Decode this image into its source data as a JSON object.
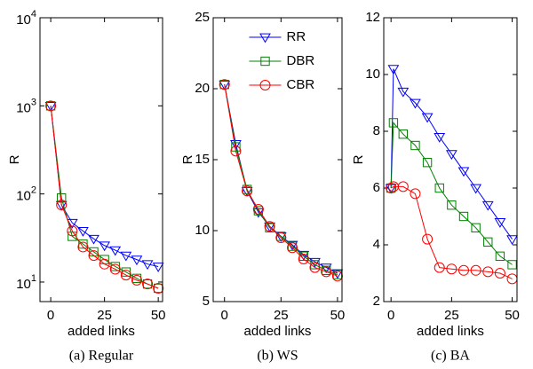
{
  "chart_data": [
    {
      "type": "line",
      "caption": "(a) Regular",
      "xlabel": "added links",
      "ylabel": "R",
      "log_y": true,
      "x": [
        0,
        5,
        10,
        15,
        20,
        25,
        30,
        35,
        40,
        45,
        50
      ],
      "xlim": [
        -5,
        52
      ],
      "xticks": [
        0,
        25,
        50
      ],
      "ylim": [
        6,
        10000
      ],
      "yticks": [
        {
          "value": 10,
          "label": "10^1"
        },
        {
          "value": 100,
          "label": "10^2"
        },
        {
          "value": 1000,
          "label": "10^3"
        },
        {
          "value": 10000,
          "label": "10^4"
        }
      ],
      "series": [
        {
          "color": "#0000ff",
          "marker": "triangle-down",
          "values": [
            1000,
            75,
            47,
            38,
            31,
            26,
            23,
            20,
            18,
            16,
            15
          ]
        },
        {
          "color": "#008000",
          "marker": "square",
          "values": [
            1000,
            90,
            33,
            27,
            22,
            18,
            15,
            13,
            11,
            9.5,
            8.5
          ]
        },
        {
          "color": "#ff0000",
          "marker": "circle",
          "values": [
            1000,
            75,
            38,
            25,
            20,
            16,
            14,
            12,
            10.5,
            9.5,
            8.5
          ]
        }
      ]
    },
    {
      "type": "line",
      "caption": "(b) WS",
      "xlabel": "added links",
      "ylabel": "R",
      "legend": "north",
      "x": [
        0,
        5,
        10,
        15,
        20,
        25,
        30,
        35,
        40,
        45,
        50
      ],
      "xlim": [
        -5,
        52
      ],
      "xticks": [
        0,
        25,
        50
      ],
      "ylim": [
        5,
        25
      ],
      "yticks": [
        5,
        10,
        15,
        20,
        25
      ],
      "series": [
        {
          "name": "RR",
          "color": "#0000ff",
          "marker": "triangle-down",
          "values": [
            20.3,
            16.1,
            12.8,
            11.3,
            10.3,
            9.6,
            9.0,
            8.3,
            7.8,
            7.4,
            7.0
          ]
        },
        {
          "name": "DBR",
          "color": "#008000",
          "marker": "square",
          "values": [
            20.3,
            15.9,
            12.9,
            11.4,
            10.2,
            9.6,
            8.9,
            8.2,
            7.6,
            7.2,
            6.9
          ]
        },
        {
          "name": "CBR",
          "color": "#ff0000",
          "marker": "circle",
          "values": [
            20.3,
            15.6,
            12.8,
            11.5,
            10.3,
            9.5,
            8.8,
            8.0,
            7.4,
            7.1,
            6.8
          ]
        }
      ]
    },
    {
      "type": "line",
      "caption": "(c) BA",
      "xlabel": "added links",
      "ylabel": "R",
      "x": [
        0,
        1,
        5,
        10,
        15,
        20,
        25,
        30,
        35,
        40,
        45,
        50
      ],
      "xlim": [
        -3,
        52
      ],
      "xticks": [
        0,
        25,
        50
      ],
      "ylim": [
        2,
        12
      ],
      "yticks": [
        2,
        4,
        6,
        8,
        10,
        12
      ],
      "series": [
        {
          "color": "#0000ff",
          "marker": "triangle-down",
          "values": [
            6,
            10.2,
            9.4,
            9.0,
            8.5,
            7.8,
            7.2,
            6.6,
            6.0,
            5.4,
            4.8,
            4.2
          ]
        },
        {
          "color": "#008000",
          "marker": "square",
          "values": [
            6,
            8.3,
            7.9,
            7.5,
            6.9,
            6.0,
            5.4,
            5.0,
            4.6,
            4.1,
            3.6,
            3.3
          ]
        },
        {
          "color": "#ff0000",
          "marker": "circle",
          "values": [
            6,
            6.05,
            6.05,
            5.8,
            4.2,
            3.2,
            3.15,
            3.1,
            3.1,
            3.05,
            3.0,
            2.8
          ]
        }
      ]
    }
  ]
}
